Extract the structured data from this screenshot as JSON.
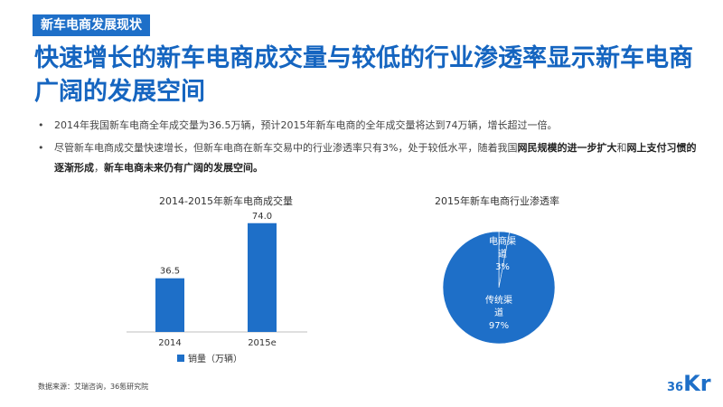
{
  "tag": "新车电商发展现状",
  "headline": "快速增长的新车电商成交量与较低的行业渗透率显示新车电商广阔的发展空间",
  "bullets": {
    "b1": "2014年我国新车电商全年成交量为36.5万辆，预计2015年新车电商的全年成交量将达到74万辆，增长超过一倍。",
    "b2_a": "尽管新车电商成交量快速增长，但新车电商在新车交易中的行业渗透率只有3%，处于较低水平，随着我国",
    "b2_b": "网民规模的进一步扩大",
    "b2_c": "和",
    "b2_d": "网上支付习惯的逐渐形成",
    "b2_e": "，",
    "b2_f": "新车电商未来仍有广阔的发展空间。"
  },
  "bullet_marker": "•",
  "source": "数据来源：艾瑞咨询，36氪研究院",
  "logo": {
    "num": "36",
    "letters": "Kr"
  },
  "chart_data": [
    {
      "type": "bar",
      "title": "2014-2015年新车电商成交量",
      "categories": [
        "2014",
        "2015e"
      ],
      "series": [
        {
          "name": "销量（万辆）",
          "values": [
            36.5,
            74.0
          ]
        }
      ],
      "data_labels": [
        "36.5",
        "74.0"
      ],
      "ylim": [
        0,
        80
      ],
      "grid": false,
      "legend": "bottom",
      "color": "#1e6fc8"
    },
    {
      "type": "pie",
      "title": "2015年新车电商行业渗透率",
      "slices": [
        {
          "label": "电商渠道",
          "value": 3,
          "value_label": "3%",
          "color": "#1e6fc8"
        },
        {
          "label": "传统渠道",
          "value": 97,
          "value_label": "97%",
          "color": "#1e6fc8"
        }
      ],
      "legend": "none"
    }
  ]
}
